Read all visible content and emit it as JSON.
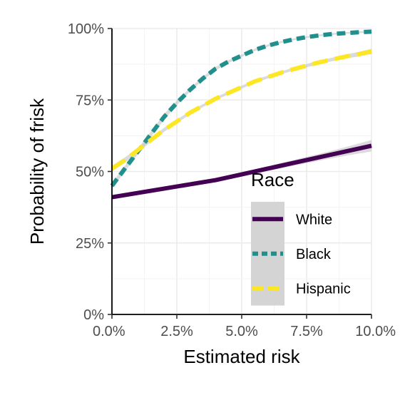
{
  "chart_data": {
    "type": "line",
    "xlabel": "Estimated risk",
    "ylabel": "Probability of frisk",
    "xlim": [
      0.0,
      0.1
    ],
    "ylim": [
      0.0,
      1.0
    ],
    "xticks": [
      0.0,
      0.025,
      0.05,
      0.075,
      0.1
    ],
    "xtick_labels": [
      "0.0%",
      "2.5%",
      "5.0%",
      "7.5%",
      "10.0%"
    ],
    "yticks": [
      0.0,
      0.25,
      0.5,
      0.75,
      1.0
    ],
    "ytick_labels": [
      "0%",
      "25%",
      "50%",
      "75%",
      "100%"
    ],
    "grid": true,
    "legend": {
      "title": "Race",
      "placement": "bottom-right"
    },
    "series": [
      {
        "name": "White",
        "color": "#440154",
        "dash": "solid",
        "x": [
          0.0,
          0.01,
          0.02,
          0.03,
          0.04,
          0.05,
          0.06,
          0.07,
          0.08,
          0.09,
          0.1
        ],
        "y": [
          0.41,
          0.425,
          0.44,
          0.455,
          0.47,
          0.49,
          0.51,
          0.53,
          0.55,
          0.57,
          0.59
        ],
        "ci_lower": [
          0.405,
          0.42,
          0.436,
          0.451,
          0.465,
          0.484,
          0.502,
          0.52,
          0.538,
          0.555,
          0.57
        ],
        "ci_upper": [
          0.415,
          0.43,
          0.444,
          0.459,
          0.475,
          0.496,
          0.518,
          0.54,
          0.562,
          0.585,
          0.61
        ]
      },
      {
        "name": "Black",
        "color": "#21908C",
        "dash": "dashed",
        "x": [
          0.0,
          0.005,
          0.01,
          0.015,
          0.02,
          0.025,
          0.03,
          0.035,
          0.04,
          0.045,
          0.05,
          0.055,
          0.06,
          0.065,
          0.07,
          0.075,
          0.08,
          0.085,
          0.09,
          0.095,
          0.1
        ],
        "y": [
          0.45,
          0.51,
          0.57,
          0.63,
          0.69,
          0.74,
          0.785,
          0.825,
          0.86,
          0.885,
          0.905,
          0.925,
          0.94,
          0.952,
          0.962,
          0.97,
          0.976,
          0.981,
          0.984,
          0.987,
          0.989
        ],
        "ci_lower": [
          0.44,
          0.5,
          0.56,
          0.62,
          0.68,
          0.732,
          0.778,
          0.819,
          0.854,
          0.88,
          0.901,
          0.921,
          0.936,
          0.949,
          0.959,
          0.967,
          0.973,
          0.978,
          0.981,
          0.984,
          0.986
        ],
        "ci_upper": [
          0.46,
          0.52,
          0.58,
          0.64,
          0.7,
          0.748,
          0.792,
          0.831,
          0.866,
          0.89,
          0.909,
          0.929,
          0.944,
          0.955,
          0.965,
          0.973,
          0.979,
          0.984,
          0.987,
          0.99,
          0.992
        ]
      },
      {
        "name": "Hispanic",
        "color": "#FDE725",
        "dash": "longdash",
        "x": [
          0.0,
          0.005,
          0.01,
          0.015,
          0.02,
          0.025,
          0.03,
          0.035,
          0.04,
          0.045,
          0.05,
          0.055,
          0.06,
          0.065,
          0.07,
          0.075,
          0.08,
          0.085,
          0.09,
          0.095,
          0.1
        ],
        "y": [
          0.51,
          0.54,
          0.575,
          0.61,
          0.645,
          0.675,
          0.705,
          0.73,
          0.755,
          0.775,
          0.795,
          0.815,
          0.83,
          0.845,
          0.858,
          0.87,
          0.882,
          0.892,
          0.902,
          0.91,
          0.92
        ],
        "ci_lower": [
          0.5,
          0.531,
          0.567,
          0.603,
          0.638,
          0.669,
          0.699,
          0.725,
          0.75,
          0.77,
          0.79,
          0.81,
          0.825,
          0.84,
          0.853,
          0.864,
          0.876,
          0.886,
          0.895,
          0.902,
          0.911
        ],
        "ci_upper": [
          0.52,
          0.549,
          0.583,
          0.617,
          0.652,
          0.681,
          0.711,
          0.735,
          0.76,
          0.78,
          0.8,
          0.82,
          0.835,
          0.85,
          0.863,
          0.876,
          0.888,
          0.898,
          0.909,
          0.918,
          0.929
        ]
      }
    ]
  }
}
